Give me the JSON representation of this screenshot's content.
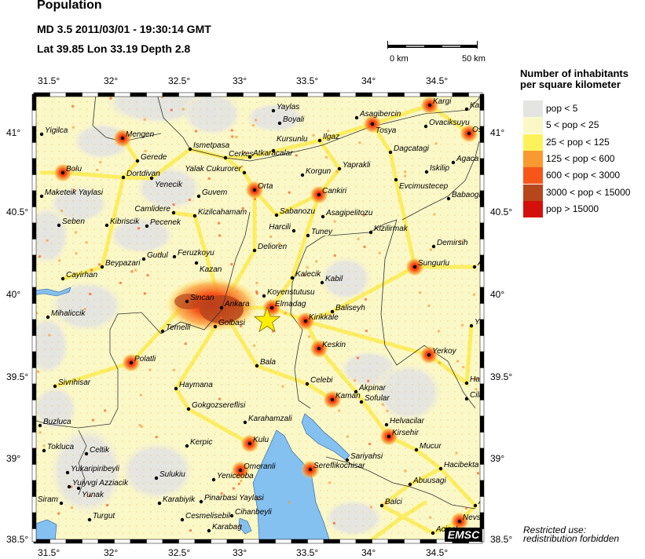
{
  "header": {
    "title": "Population",
    "event_line": "MD 3.5  2011/03/01 - 19:30:14 GMT",
    "location_line": "Lat 39.85    Lon  33.19    Depth  2.8"
  },
  "scale_bar": {
    "start_label": "0 km",
    "end_label": "50 km"
  },
  "axes": {
    "lon_labels": [
      "31.5°",
      "32°",
      "32.5°",
      "33°",
      "33.5°",
      "34°",
      "34.5°"
    ],
    "lat_labels": [
      "41°",
      "40.5°",
      "40°",
      "39.5°",
      "39°",
      "38.5°"
    ]
  },
  "epicenter": {
    "lat": 39.85,
    "lon": 33.19,
    "marker": "star",
    "color": "#ffee00"
  },
  "legend": {
    "title_line1": "Number of inhabitants",
    "title_line2": "per square kilometer",
    "items": [
      {
        "label": "pop < 5",
        "color": "#e4e4e2"
      },
      {
        "label": "5 < pop < 25",
        "color": "#fbf8c8"
      },
      {
        "label": "25 < pop < 125",
        "color": "#fcf25a"
      },
      {
        "label": "125 < pop < 600",
        "color": "#f99a30"
      },
      {
        "label": "600 < pop < 3000",
        "color": "#f6561a"
      },
      {
        "label": "3000 < pop < 15000",
        "color": "#b7461c"
      },
      {
        "label": "pop > 15000",
        "color": "#d4100c"
      }
    ]
  },
  "cities": [
    "Yigilca",
    "Mengen",
    "Gerede",
    "Bolu",
    "Dortdivan",
    "Yenecik",
    "Ismetpasa",
    "Cerkes",
    "Atkaracalar",
    "Yalak Cukurorer",
    "Maketeik Yaylasi",
    "Guvem",
    "Camlidere",
    "Kizilcahamam",
    "Orta",
    "Yaylas",
    "Boyali",
    "Ilgaz",
    "Asagibercin",
    "Tosya",
    "Kargi",
    "Kam",
    "Ovaciksuyu",
    "Os",
    "Dagcatagi",
    "Yaprakli",
    "Korgun",
    "Iskilip",
    "Evcimustecep",
    "Agaca",
    "Cankiri",
    "Babaogl",
    "Sabanozu",
    "Asagipelitozu",
    "Kursunlu",
    "Seben",
    "Kibriscik",
    "Pecenek",
    "Gudul",
    "Feruzkoyu",
    "Kazan",
    "Beypazari",
    "Cayirhan",
    "Sincan",
    "Ankara",
    "Golbasi",
    "Temelli",
    "Mihaliccik",
    "Harcili",
    "Tuney",
    "Kizilirmak",
    "Delioren",
    "Demirsih",
    "Sungurlu",
    "A",
    "Kalecik",
    "Kabil",
    "Koyenstutusu",
    "Elmadag",
    "Baliseyh",
    "Kirikkale",
    "Yo",
    "Polatli",
    "Sivrihisar",
    "Haymana",
    "Gokgozsereflisi",
    "Buzluca",
    "Karahamzali",
    "Tokluca",
    "Celtik",
    "Kerpic",
    "Kulu",
    "Keskin",
    "Yerkoy",
    "Bala",
    "Celebi",
    "Akpinar",
    "Kaman",
    "Sofular",
    "Ham",
    "Cilb",
    "Helvacilar",
    "Kirsehir",
    "Mucur",
    "Yukaripiribeyli",
    "Yunak",
    "Yuiyvgi Azziacik",
    "Siram",
    "Turgut",
    "Sulukiu",
    "Karabiyik",
    "Pinarbasi Yaylasi",
    "Cesmelisebil",
    "Cihanbeyli",
    "Karabag",
    "Omeranli",
    "Yeniceoba",
    "Sereflikochisar",
    "Sariyahsi",
    "Hacibekta",
    "Abuusagi",
    "Balci",
    "A",
    "Nevse",
    "Acigol"
  ],
  "logo": "EMSC",
  "restriction": {
    "line1": "Restricted use:",
    "line2": "redistribution forbidden"
  },
  "colors": {
    "water": "#84c0f0",
    "land_low": "#fbf8c8",
    "frame": "#000000"
  }
}
